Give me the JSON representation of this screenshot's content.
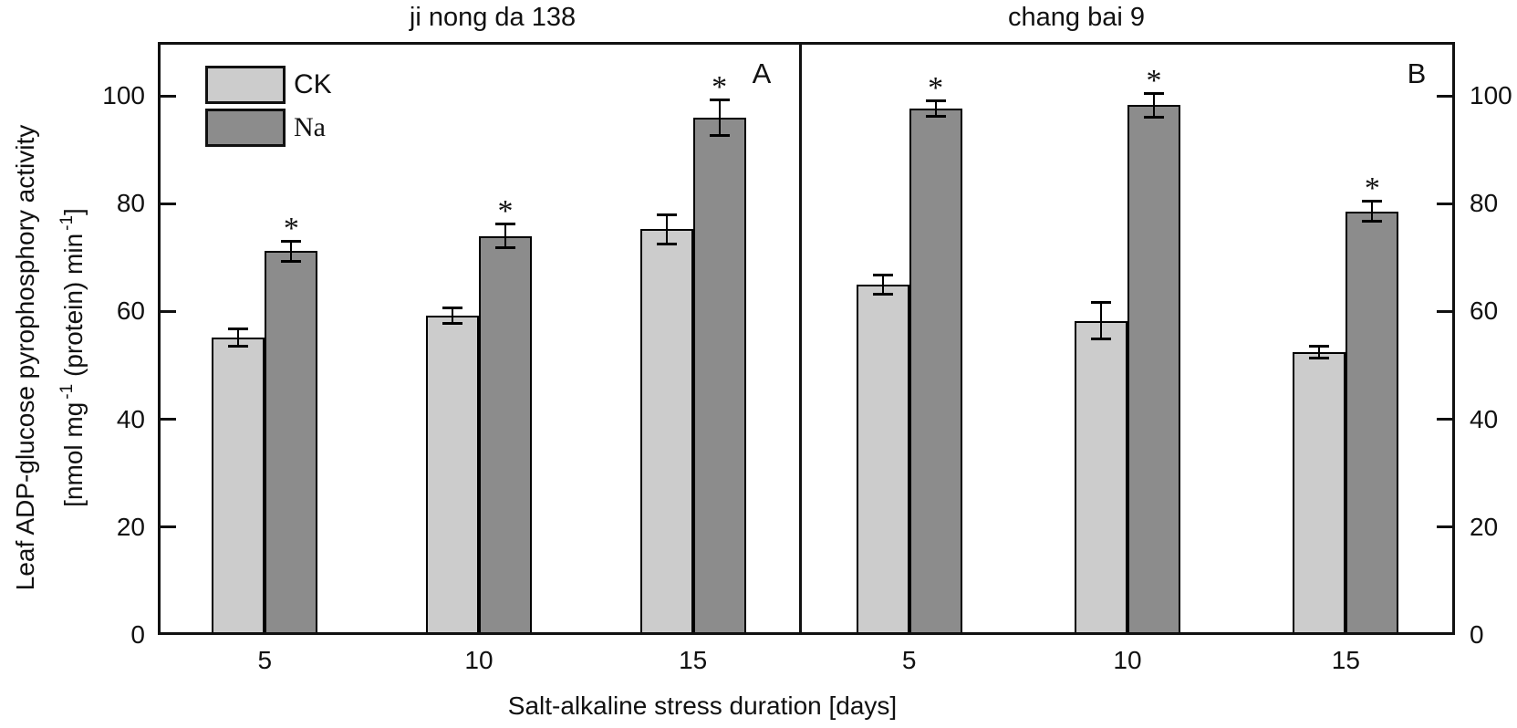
{
  "chart_data": {
    "type": "bar",
    "layout": "two-panel grouped column chart with error bars and significance asterisks",
    "xlabel": "Salt-alkaline stress duration [days]",
    "ylabel_line1": "Leaf ADP-glucose pyrophosphory activity",
    "ylabel_line2_segments": [
      {
        "text": "[nmol mg"
      },
      {
        "text": "-1",
        "sup": true
      },
      {
        "text": " (protein) min"
      },
      {
        "text": "-1",
        "sup": true
      },
      {
        "text": "]"
      }
    ],
    "ylim": [
      0,
      110
    ],
    "yticks": [
      0,
      20,
      40,
      60,
      80,
      100
    ],
    "grid": false,
    "significance_marker": "*",
    "colors": {
      "ck_fill": "#cccccc",
      "na_fill": "#8c8c8c",
      "axis": "#111111"
    },
    "legend": {
      "position": "top-left",
      "entries": [
        {
          "label": "CK",
          "color": "#cccccc"
        },
        {
          "label": "Na",
          "color": "#8c8c8c"
        }
      ]
    },
    "panels": [
      {
        "label": "A",
        "title": "ji nong da 138",
        "categories": [
          "5",
          "10",
          "15"
        ],
        "series": [
          {
            "name": "CK",
            "color": "#cccccc",
            "values": [
              55.2,
              59.2,
              75.3
            ],
            "errors": [
              1.7,
              1.5,
              2.8
            ],
            "significant": [
              false,
              false,
              false
            ]
          },
          {
            "name": "Na",
            "color": "#8c8c8c",
            "values": [
              71.2,
              74.0,
              95.9
            ],
            "errors": [
              1.9,
              2.3,
              3.4
            ],
            "significant": [
              true,
              true,
              true
            ]
          }
        ]
      },
      {
        "label": "B",
        "title": "chang bai 9",
        "categories": [
          "5",
          "10",
          "15"
        ],
        "series": [
          {
            "name": "CK",
            "color": "#cccccc",
            "values": [
              65.0,
              58.3,
              52.5
            ],
            "errors": [
              1.8,
              3.5,
              1.2
            ],
            "significant": [
              false,
              false,
              false
            ]
          },
          {
            "name": "Na",
            "color": "#8c8c8c",
            "values": [
              97.7,
              98.3,
              78.6
            ],
            "errors": [
              1.5,
              2.3,
              1.9
            ],
            "significant": [
              true,
              true,
              true
            ]
          }
        ]
      }
    ]
  }
}
